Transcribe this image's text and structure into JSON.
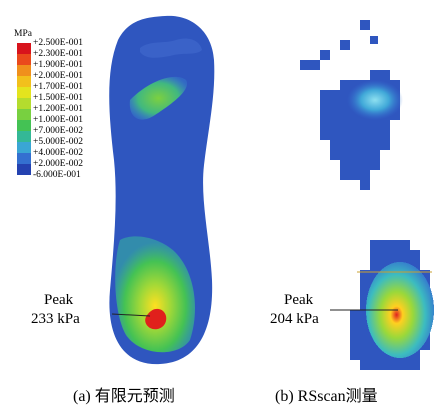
{
  "legend": {
    "unit": "MPa",
    "labels": [
      "+2.500E-001",
      "+2.300E-001",
      "+1.900E-001",
      "+2.000E-001",
      "+1.700E-001",
      "+1.500E-001",
      "+1.200E-001",
      "+1.000E-001",
      "+7.000E-002",
      "+5.000E-002",
      "+4.000E-002",
      "+2.000E-002",
      "-6.000E-001"
    ],
    "colors": [
      "#d8141c",
      "#ea4a1c",
      "#f0901c",
      "#f2c01c",
      "#e4e41e",
      "#b4dc2e",
      "#78d040",
      "#44c254",
      "#34b896",
      "#3aa6d4",
      "#3470d0",
      "#2442b0"
    ]
  },
  "panels": [
    {
      "annotation": {
        "label": "Peak",
        "value": "233 kPa"
      },
      "caption": "(a) 有限元预测"
    },
    {
      "annotation": {
        "label": "Peak",
        "value": "204 kPa"
      },
      "caption": "(b) RSscan测量"
    }
  ]
}
